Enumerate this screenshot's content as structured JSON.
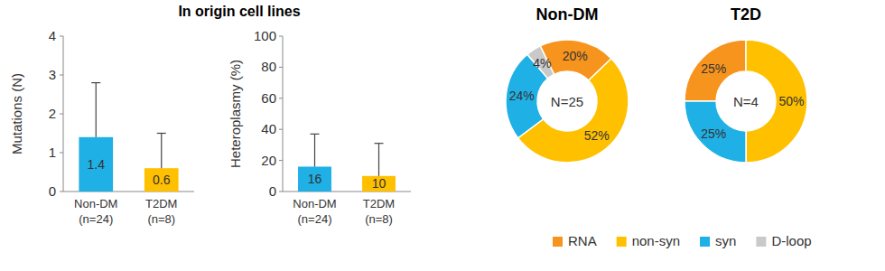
{
  "chart_data": [
    {
      "type": "bar",
      "title": "In origin cell lines",
      "y_label": "Mutations (N)",
      "categories": [
        "Non-DM\n(n=24)",
        "T2DM\n(n=8)"
      ],
      "values": [
        1.4,
        0.6
      ],
      "errors": [
        1.4,
        0.9
      ],
      "colors": [
        "#1fb0e6",
        "#ffc000"
      ],
      "ylim": [
        0,
        4
      ],
      "yticks": [
        0,
        1,
        2,
        3,
        4
      ],
      "grid": false,
      "data_labels": true
    },
    {
      "type": "bar",
      "y_label": "Heteroplasmy (%)",
      "categories": [
        "Non-DM\n(n=24)",
        "T2DM\n(n=8)"
      ],
      "values": [
        16,
        10
      ],
      "errors": [
        21,
        21
      ],
      "colors": [
        "#1fb0e6",
        "#ffc000"
      ],
      "ylim": [
        0,
        100
      ],
      "yticks": [
        0,
        20,
        40,
        60,
        80,
        100
      ],
      "grid": false,
      "data_labels": true
    },
    {
      "type": "pie",
      "title": "Non-DM",
      "annotations": [
        "N=25"
      ],
      "categories": [
        "RNA",
        "non-syn",
        "syn",
        "D-loop"
      ],
      "values": [
        20,
        52,
        24,
        4
      ],
      "value_labels": [
        "20%",
        "52%",
        "24%",
        "4%"
      ],
      "colors": [
        "#f7941d",
        "#ffc000",
        "#1fb0e6",
        "#c9c9c9"
      ],
      "data_labels": true,
      "legend": "bottom"
    },
    {
      "type": "pie",
      "title": "T2D",
      "annotations": [
        "N=4"
      ],
      "categories": [
        "RNA",
        "non-syn",
        "syn"
      ],
      "values": [
        25,
        50,
        25
      ],
      "value_labels": [
        "25%",
        "50%",
        "25%"
      ],
      "colors": [
        "#f7941d",
        "#ffc000",
        "#1fb0e6"
      ],
      "data_labels": true
    }
  ]
}
